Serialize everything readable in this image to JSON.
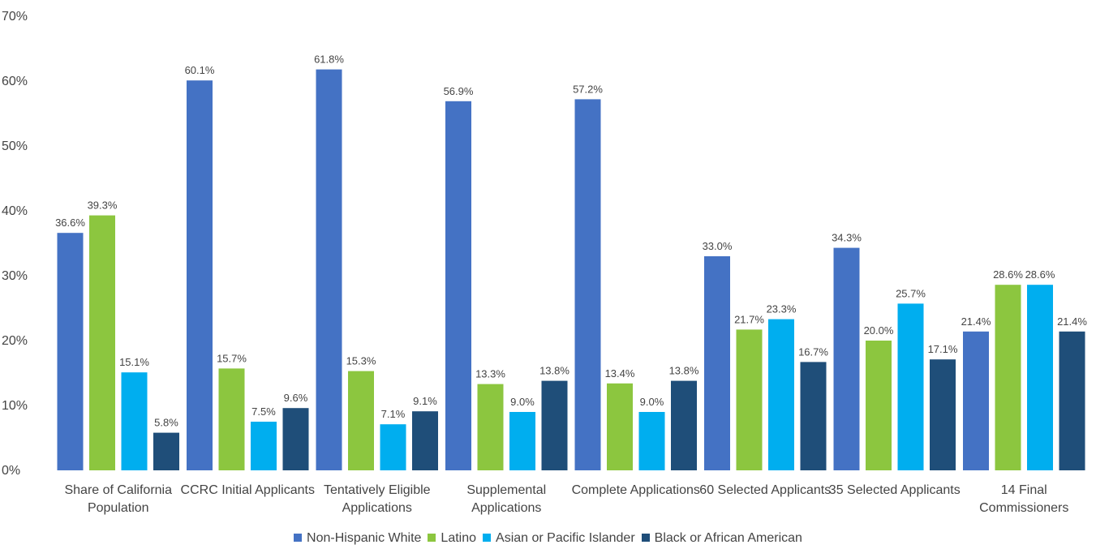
{
  "chart_data": {
    "type": "bar",
    "categories": [
      "Share of California Population",
      "CCRC Initial Applicants",
      "Tentatively Eligible Applications",
      "Supplemental Applications",
      "Complete Applications",
      "60 Selected Applicants",
      "35 Selected Applicants",
      "14 Final Commissioners"
    ],
    "series": [
      {
        "name": "Non-Hispanic White",
        "color": "#4472c4",
        "values": [
          36.6,
          60.1,
          61.8,
          56.9,
          57.2,
          33.0,
          34.3,
          21.4
        ],
        "value_labels": [
          "36.6%",
          "60.1%",
          "61.8%",
          "56.9%",
          "57.2%",
          "33.0%",
          "34.3%",
          "21.4%"
        ]
      },
      {
        "name": "Latino",
        "color": "#8cc63f",
        "values": [
          39.3,
          15.7,
          15.3,
          13.3,
          13.4,
          21.7,
          20.0,
          28.6
        ],
        "value_labels": [
          "39.3%",
          "15.7%",
          "15.3%",
          "13.3%",
          "13.4%",
          "21.7%",
          "20.0%",
          "28.6%"
        ]
      },
      {
        "name": "Asian or Pacific Islander",
        "color": "#00aeef",
        "values": [
          15.1,
          7.5,
          7.1,
          9.0,
          9.0,
          23.3,
          25.7,
          28.6
        ],
        "value_labels": [
          "15.1%",
          "7.5%",
          "7.1%",
          "9.0%",
          "9.0%",
          "23.3%",
          "25.7%",
          "28.6%"
        ]
      },
      {
        "name": "Black or African American",
        "color": "#1f4e79",
        "values": [
          5.8,
          9.6,
          9.1,
          13.8,
          13.8,
          16.7,
          17.1,
          21.4
        ],
        "value_labels": [
          "5.8%",
          "9.6%",
          "9.1%",
          "13.8%",
          "13.8%",
          "16.7%",
          "17.1%",
          "21.4%"
        ]
      }
    ],
    "ylim": [
      0,
      70
    ],
    "yticks": [
      {
        "value": 0,
        "label": "0%"
      },
      {
        "value": 10,
        "label": "10%"
      },
      {
        "value": 20,
        "label": "20%"
      },
      {
        "value": 30,
        "label": "30%"
      },
      {
        "value": 40,
        "label": "40%"
      },
      {
        "value": 50,
        "label": "50%"
      },
      {
        "value": 60,
        "label": "60%"
      },
      {
        "value": 70,
        "label": "70%"
      }
    ],
    "grid": false,
    "legend": "bottom"
  }
}
